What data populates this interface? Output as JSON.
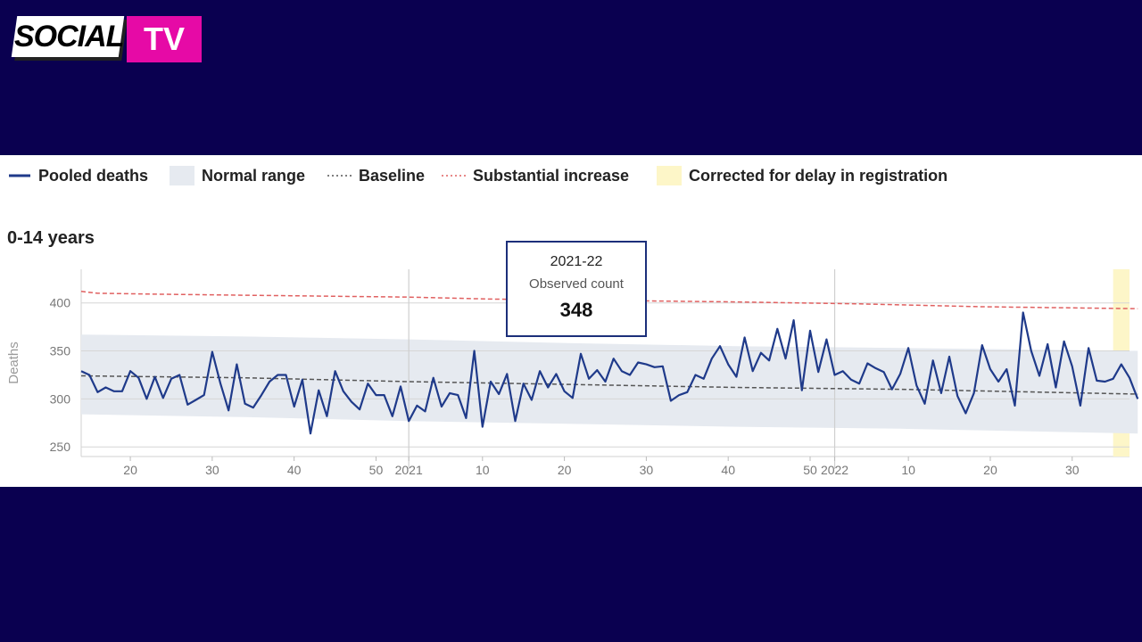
{
  "brand": {
    "word": "SOCIAL",
    "tv": "TV"
  },
  "legend": [
    {
      "label": "Pooled deaths",
      "kind": "line",
      "color": "#1f3a8a"
    },
    {
      "label": "Normal range",
      "kind": "band",
      "color": "#e6eaf0"
    },
    {
      "label": "Baseline",
      "kind": "dotted",
      "color": "#555555"
    },
    {
      "label": "Substantial increase",
      "kind": "dotted",
      "color": "#e06060"
    },
    {
      "label": "Corrected for delay in registration",
      "kind": "band",
      "color": "#fdf6c8"
    }
  ],
  "tooltip": {
    "period": "2021-22",
    "label": "Observed count",
    "value": "348"
  },
  "chart_data": {
    "type": "line",
    "title": "0-14 years",
    "ylabel": "Deaths",
    "ylim": [
      240,
      435
    ],
    "yticks": [
      250,
      300,
      350,
      400
    ],
    "xlim": [
      0,
      128
    ],
    "xticks": [
      {
        "x": 6,
        "label": "20"
      },
      {
        "x": 16,
        "label": "30"
      },
      {
        "x": 26,
        "label": "40"
      },
      {
        "x": 36,
        "label": "50"
      },
      {
        "x": 40,
        "label": "2021"
      },
      {
        "x": 49,
        "label": "10"
      },
      {
        "x": 59,
        "label": "20"
      },
      {
        "x": 69,
        "label": "30"
      },
      {
        "x": 79,
        "label": "40"
      },
      {
        "x": 89,
        "label": "50"
      },
      {
        "x": 92,
        "label": "2022"
      },
      {
        "x": 101,
        "label": "10"
      },
      {
        "x": 111,
        "label": "20"
      },
      {
        "x": 121,
        "label": "30"
      }
    ],
    "year_lines": [
      40,
      92
    ],
    "corrected_from": 126,
    "colors": {
      "series": "#1f3a8a",
      "band": "#e6eaf0",
      "baseline": "#555555",
      "increase": "#e06060",
      "corrected": "#fdf6c8"
    },
    "series": [
      {
        "name": "Pooled deaths",
        "values": [
          329,
          325,
          307,
          312,
          308,
          308,
          329,
          322,
          300,
          323,
          301,
          321,
          325,
          294,
          299,
          304,
          349,
          316,
          288,
          336,
          295,
          291,
          304,
          318,
          325,
          325,
          292,
          320,
          264,
          309,
          282,
          329,
          308,
          297,
          289,
          316,
          304,
          304,
          282,
          313,
          277,
          293,
          287,
          322,
          292,
          306,
          304,
          280,
          350,
          271,
          318,
          305,
          326,
          277,
          316,
          299,
          329,
          312,
          326,
          308,
          301,
          347,
          321,
          330,
          318,
          342,
          329,
          325,
          338,
          336,
          333,
          334,
          298,
          304,
          307,
          325,
          321,
          342,
          355,
          336,
          323,
          364,
          329,
          348,
          340,
          373,
          342,
          382,
          309,
          371,
          328,
          362,
          325,
          329,
          320,
          316,
          337,
          332,
          328,
          310,
          326,
          353,
          314,
          295,
          340,
          306,
          344,
          303,
          285,
          306,
          356,
          331,
          318,
          331,
          293,
          390,
          350,
          324,
          357,
          312,
          360,
          334,
          293,
          353,
          319,
          318,
          321,
          336,
          322,
          300
        ]
      },
      {
        "name": "Baseline",
        "values": [
          [
            0,
            324
          ],
          [
            20,
            322
          ],
          [
            40,
            318
          ],
          [
            60,
            315
          ],
          [
            80,
            312
          ],
          [
            100,
            310
          ],
          [
            129,
            305
          ]
        ]
      },
      {
        "name": "Substantial increase",
        "values": [
          [
            0,
            412
          ],
          [
            2,
            410
          ],
          [
            10,
            409
          ],
          [
            20,
            408
          ],
          [
            40,
            406
          ],
          [
            50,
            404
          ],
          [
            60,
            403
          ],
          [
            80,
            401
          ],
          [
            95,
            399
          ],
          [
            110,
            396
          ],
          [
            129,
            394
          ]
        ]
      }
    ],
    "normal_range": [
      [
        0,
        284,
        367
      ],
      [
        20,
        281,
        365
      ],
      [
        40,
        277,
        362
      ],
      [
        60,
        274,
        358
      ],
      [
        80,
        271,
        355
      ],
      [
        100,
        269,
        353
      ],
      [
        129,
        264,
        350
      ]
    ]
  }
}
